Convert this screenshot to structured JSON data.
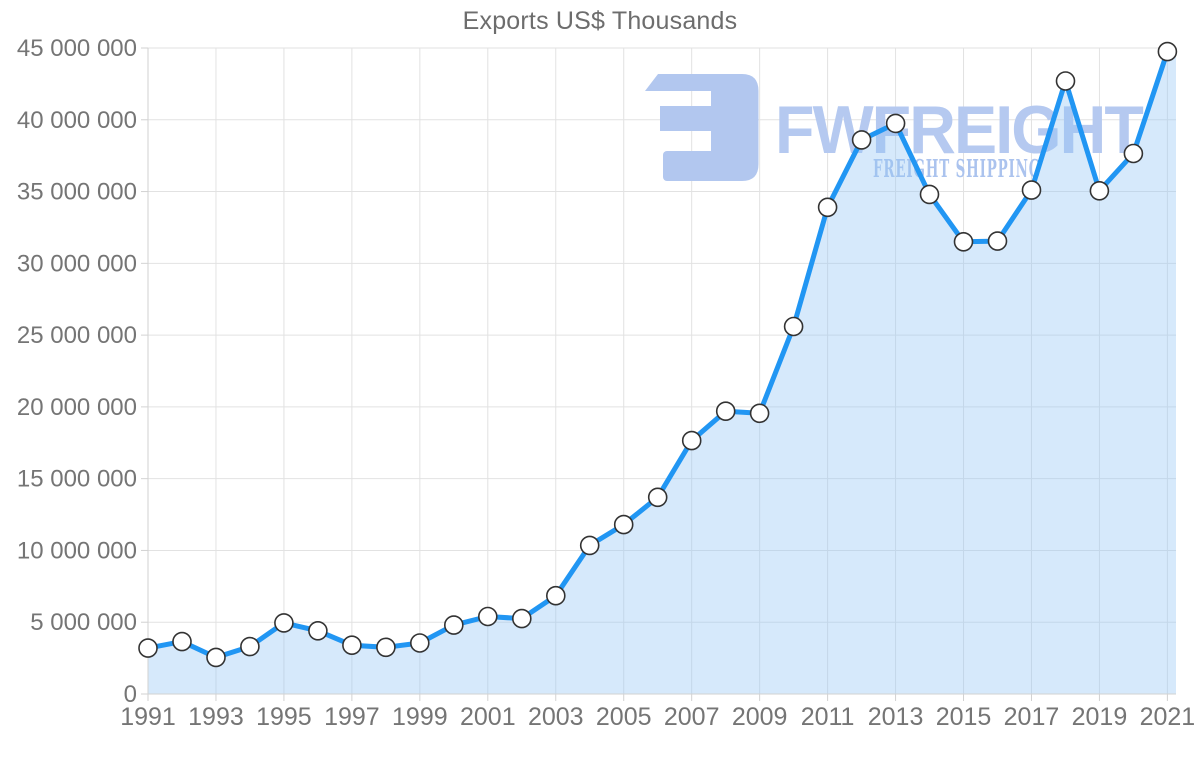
{
  "title": "Exports US$ Thousands",
  "watermark": {
    "brand": "FWFREIGHT",
    "tagline": "FREIGHT SHIPPING",
    "icon": "fwfreight-logo-icon",
    "icon_color": "#b2c7ef",
    "brand_color": "#b5c9f0",
    "tagline_color": "#abc3ee"
  },
  "chart_data": {
    "type": "area",
    "title": "Exports US$ Thousands",
    "x": [
      1991,
      1992,
      1993,
      1994,
      1995,
      1996,
      1997,
      1998,
      1999,
      2000,
      2001,
      2002,
      2003,
      2004,
      2005,
      2006,
      2007,
      2008,
      2009,
      2010,
      2011,
      2012,
      2013,
      2014,
      2015,
      2016,
      2017,
      2018,
      2019,
      2020,
      2021
    ],
    "series": [
      {
        "name": "Exports US$ Thousands",
        "values": [
          3200000,
          3650000,
          2550000,
          3300000,
          4950000,
          4400000,
          3400000,
          3250000,
          3550000,
          4800000,
          5400000,
          5250000,
          6850000,
          10350000,
          11800000,
          13700000,
          17650000,
          19700000,
          19550000,
          25600000,
          33900000,
          38600000,
          39750000,
          34800000,
          31500000,
          31550000,
          35100000,
          42700000,
          35050000,
          37650000,
          44750000
        ]
      }
    ],
    "xlabel": "",
    "ylabel": "",
    "ylim": [
      0,
      45000000
    ],
    "y_ticks": [
      0,
      5000000,
      10000000,
      15000000,
      20000000,
      25000000,
      30000000,
      35000000,
      40000000,
      45000000
    ],
    "x_tick_labels": [
      "1991",
      "1993",
      "1995",
      "1997",
      "1999",
      "2001",
      "2003",
      "2005",
      "2007",
      "2009",
      "2011",
      "2013",
      "2015",
      "2017",
      "2019",
      "2021"
    ],
    "grid": true,
    "legend_position": "none",
    "marker_style": "circle",
    "colors": {
      "line": "#2196f3",
      "fill": "rgba(147,197,244,0.38)",
      "marker_fill": "#ffffff",
      "marker_stroke": "#333333",
      "grid": "#e2e2e2",
      "axis": "#d2d2d2",
      "tick_text": "#757575",
      "title_text": "#6d6d6d"
    }
  }
}
